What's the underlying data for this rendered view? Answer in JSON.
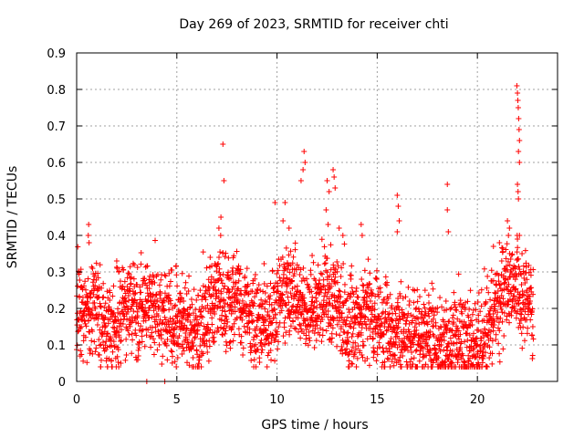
{
  "chart_data": {
    "type": "scatter",
    "title": "Day 269 of 2023, SRMTID for receiver chti",
    "xlabel": "GPS time / hours",
    "ylabel": "SRMTID / TECUs",
    "xlim": [
      0,
      24
    ],
    "ylim": [
      0,
      0.9
    ],
    "xticks": [
      0,
      5,
      10,
      15,
      20
    ],
    "yticks": [
      0,
      0.1,
      0.2,
      0.3,
      0.4,
      0.5,
      0.6,
      0.7,
      0.8,
      0.9
    ],
    "xtick_labels": [
      "0",
      "5",
      "10",
      "15",
      "20"
    ],
    "ytick_labels": [
      "0",
      "0.1",
      "0.2",
      "0.3",
      "0.4",
      "0.5",
      "0.6",
      "0.7",
      "0.8",
      "0.9"
    ],
    "grid": true,
    "marker": "+",
    "color": "#ff0000",
    "baseline": [
      [
        0,
        0.19
      ],
      [
        0.5,
        0.18
      ],
      [
        1,
        0.2
      ],
      [
        1.5,
        0.13
      ],
      [
        2,
        0.15
      ],
      [
        2.5,
        0.2
      ],
      [
        3,
        0.18
      ],
      [
        3.5,
        0.22
      ],
      [
        4,
        0.2
      ],
      [
        4.5,
        0.17
      ],
      [
        5,
        0.16
      ],
      [
        5.5,
        0.15
      ],
      [
        6,
        0.13
      ],
      [
        6.5,
        0.17
      ],
      [
        7,
        0.25
      ],
      [
        7.5,
        0.22
      ],
      [
        8,
        0.22
      ],
      [
        8.5,
        0.2
      ],
      [
        9,
        0.13
      ],
      [
        9.5,
        0.16
      ],
      [
        10,
        0.22
      ],
      [
        10.5,
        0.27
      ],
      [
        11,
        0.22
      ],
      [
        11.5,
        0.2
      ],
      [
        12,
        0.2
      ],
      [
        12.5,
        0.22
      ],
      [
        13,
        0.22
      ],
      [
        13.5,
        0.17
      ],
      [
        14,
        0.16
      ],
      [
        14.5,
        0.18
      ],
      [
        15,
        0.17
      ],
      [
        15.5,
        0.13
      ],
      [
        16,
        0.14
      ],
      [
        16.5,
        0.13
      ],
      [
        17,
        0.12
      ],
      [
        17.5,
        0.13
      ],
      [
        18,
        0.1
      ],
      [
        18.5,
        0.11
      ],
      [
        19,
        0.11
      ],
      [
        19.5,
        0.12
      ],
      [
        20,
        0.1
      ],
      [
        20.5,
        0.12
      ],
      [
        21,
        0.2
      ],
      [
        21.5,
        0.28
      ],
      [
        22,
        0.25
      ],
      [
        22.5,
        0.22
      ],
      [
        22.8,
        0.2
      ]
    ],
    "peaks": [
      [
        0.6,
        0.43
      ],
      [
        0.58,
        0.4
      ],
      [
        0.62,
        0.38
      ],
      [
        2.0,
        0.33
      ],
      [
        2.1,
        0.3
      ],
      [
        7.3,
        0.65
      ],
      [
        7.35,
        0.55
      ],
      [
        7.2,
        0.45
      ],
      [
        7.1,
        0.42
      ],
      [
        9.9,
        0.49
      ],
      [
        10.4,
        0.49
      ],
      [
        10.3,
        0.44
      ],
      [
        10.6,
        0.42
      ],
      [
        11.35,
        0.63
      ],
      [
        11.4,
        0.6
      ],
      [
        11.3,
        0.58
      ],
      [
        11.2,
        0.55
      ],
      [
        12.5,
        0.55
      ],
      [
        12.6,
        0.52
      ],
      [
        12.45,
        0.47
      ],
      [
        12.55,
        0.43
      ],
      [
        12.8,
        0.58
      ],
      [
        12.85,
        0.56
      ],
      [
        12.9,
        0.53
      ],
      [
        13.1,
        0.42
      ],
      [
        14.2,
        0.43
      ],
      [
        14.25,
        0.4
      ],
      [
        16.0,
        0.51
      ],
      [
        16.05,
        0.48
      ],
      [
        16.1,
        0.44
      ],
      [
        16.0,
        0.41
      ],
      [
        18.5,
        0.54
      ],
      [
        18.5,
        0.47
      ],
      [
        18.55,
        0.41
      ],
      [
        20.8,
        0.37
      ],
      [
        21.1,
        0.38
      ],
      [
        21.5,
        0.44
      ],
      [
        21.6,
        0.42
      ],
      [
        21.55,
        0.4
      ],
      [
        21.97,
        0.81
      ],
      [
        22.0,
        0.79
      ],
      [
        22.02,
        0.77
      ],
      [
        22.04,
        0.75
      ],
      [
        22.06,
        0.72
      ],
      [
        22.08,
        0.69
      ],
      [
        22.1,
        0.66
      ],
      [
        22.05,
        0.63
      ],
      [
        22.1,
        0.6
      ],
      [
        22.0,
        0.54
      ],
      [
        22.03,
        0.52
      ],
      [
        22.05,
        0.5
      ],
      [
        22.0,
        0.39
      ],
      [
        22.1,
        0.4
      ],
      [
        3.5,
        0.0
      ],
      [
        4.4,
        0.0
      ]
    ]
  }
}
